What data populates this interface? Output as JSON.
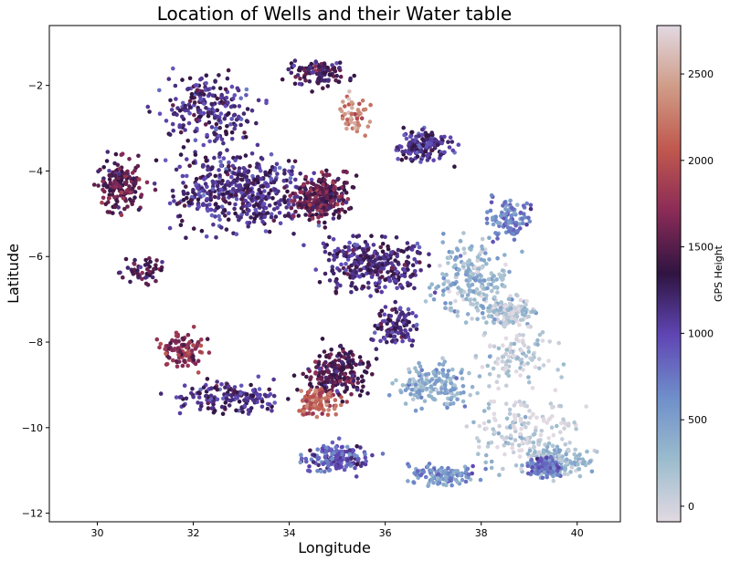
{
  "chart_data": {
    "type": "scatter",
    "title": "Location of Wells and their Water table",
    "xlabel": "Longitude",
    "ylabel": "Latitude",
    "xlim": [
      29.0,
      40.9
    ],
    "ylim": [
      -12.2,
      -0.6
    ],
    "xticks": [
      30,
      32,
      34,
      36,
      38,
      40
    ],
    "yticks": [
      -2,
      -4,
      -6,
      -8,
      -10,
      -12
    ],
    "grid": false,
    "colorbar": {
      "label": "GPS Height",
      "range": [
        -90,
        2780
      ],
      "ticks": [
        0,
        500,
        1000,
        1500,
        2000,
        2500
      ],
      "colormap": "twilight-like",
      "stops": [
        "#e2d9e2",
        "#9bbccd",
        "#6f8fca",
        "#6046b4",
        "#2f1441",
        "#8a2b57",
        "#c0584e",
        "#cf9b86",
        "#e2d9e2"
      ]
    },
    "regions": [
      {
        "lon": 32.3,
        "lat": -2.6,
        "spread": [
          0.9,
          0.7
        ],
        "height": 1160,
        "weight": 4
      },
      {
        "lon": 33.0,
        "lat": -4.5,
        "spread": [
          1.3,
          0.8
        ],
        "height": 1170,
        "weight": 9
      },
      {
        "lon": 35.8,
        "lat": -6.2,
        "spread": [
          0.9,
          0.6
        ],
        "height": 1200,
        "weight": 6
      },
      {
        "lon": 32.8,
        "lat": -9.3,
        "spread": [
          1.0,
          0.3
        ],
        "height": 1150,
        "weight": 3
      },
      {
        "lon": 38.6,
        "lat": -7.3,
        "spread": [
          0.5,
          0.3
        ],
        "height": 120,
        "weight": 3
      },
      {
        "lon": 38.8,
        "lat": -8.3,
        "spread": [
          0.7,
          0.6
        ],
        "height": 60,
        "weight": 2
      },
      {
        "lon": 38.9,
        "lat": -10.1,
        "spread": [
          1.0,
          0.7
        ],
        "height": 40,
        "weight": 3
      },
      {
        "lon": 34.6,
        "lat": -1.7,
        "spread": [
          0.5,
          0.3
        ],
        "height": 1350,
        "weight": 2
      },
      {
        "lon": 34.7,
        "lat": -4.6,
        "spread": [
          0.5,
          0.5
        ],
        "height": 1500,
        "weight": 5
      },
      {
        "lon": 31.8,
        "lat": -8.2,
        "spread": [
          0.4,
          0.4
        ],
        "height": 1750,
        "weight": 2
      },
      {
        "lon": 30.5,
        "lat": -4.3,
        "spread": [
          0.4,
          0.6
        ],
        "height": 1500,
        "weight": 3
      },
      {
        "lon": 35.0,
        "lat": -8.7,
        "spread": [
          0.6,
          0.5
        ],
        "height": 1400,
        "weight": 4
      },
      {
        "lon": 34.6,
        "lat": -9.4,
        "spread": [
          0.4,
          0.3
        ],
        "height": 2100,
        "weight": 2
      },
      {
        "lon": 36.8,
        "lat": -3.4,
        "spread": [
          0.5,
          0.3
        ],
        "height": 1100,
        "weight": 3
      },
      {
        "lon": 35.0,
        "lat": -10.7,
        "spread": [
          0.6,
          0.3
        ],
        "height": 900,
        "weight": 3
      },
      {
        "lon": 37.0,
        "lat": -9.0,
        "spread": [
          0.6,
          0.5
        ],
        "height": 400,
        "weight": 3
      },
      {
        "lon": 37.8,
        "lat": -6.5,
        "spread": [
          0.7,
          0.8
        ],
        "height": 300,
        "weight": 4
      },
      {
        "lon": 39.6,
        "lat": -10.8,
        "spread": [
          0.6,
          0.3
        ],
        "height": 250,
        "weight": 3
      },
      {
        "lon": 39.3,
        "lat": -10.9,
        "spread": [
          0.3,
          0.2
        ],
        "height": 800,
        "weight": 2
      },
      {
        "lon": 35.3,
        "lat": -2.7,
        "spread": [
          0.3,
          0.4
        ],
        "height": 2300,
        "weight": 1
      },
      {
        "lon": 37.2,
        "lat": -11.1,
        "spread": [
          0.6,
          0.2
        ],
        "height": 600,
        "weight": 2
      },
      {
        "lon": 38.6,
        "lat": -5.1,
        "spread": [
          0.4,
          0.4
        ],
        "height": 700,
        "weight": 2
      },
      {
        "lon": 31.0,
        "lat": -6.3,
        "spread": [
          0.4,
          0.3
        ],
        "height": 1350,
        "weight": 1
      },
      {
        "lon": 36.2,
        "lat": -7.6,
        "spread": [
          0.4,
          0.4
        ],
        "height": 1200,
        "weight": 2
      }
    ]
  }
}
